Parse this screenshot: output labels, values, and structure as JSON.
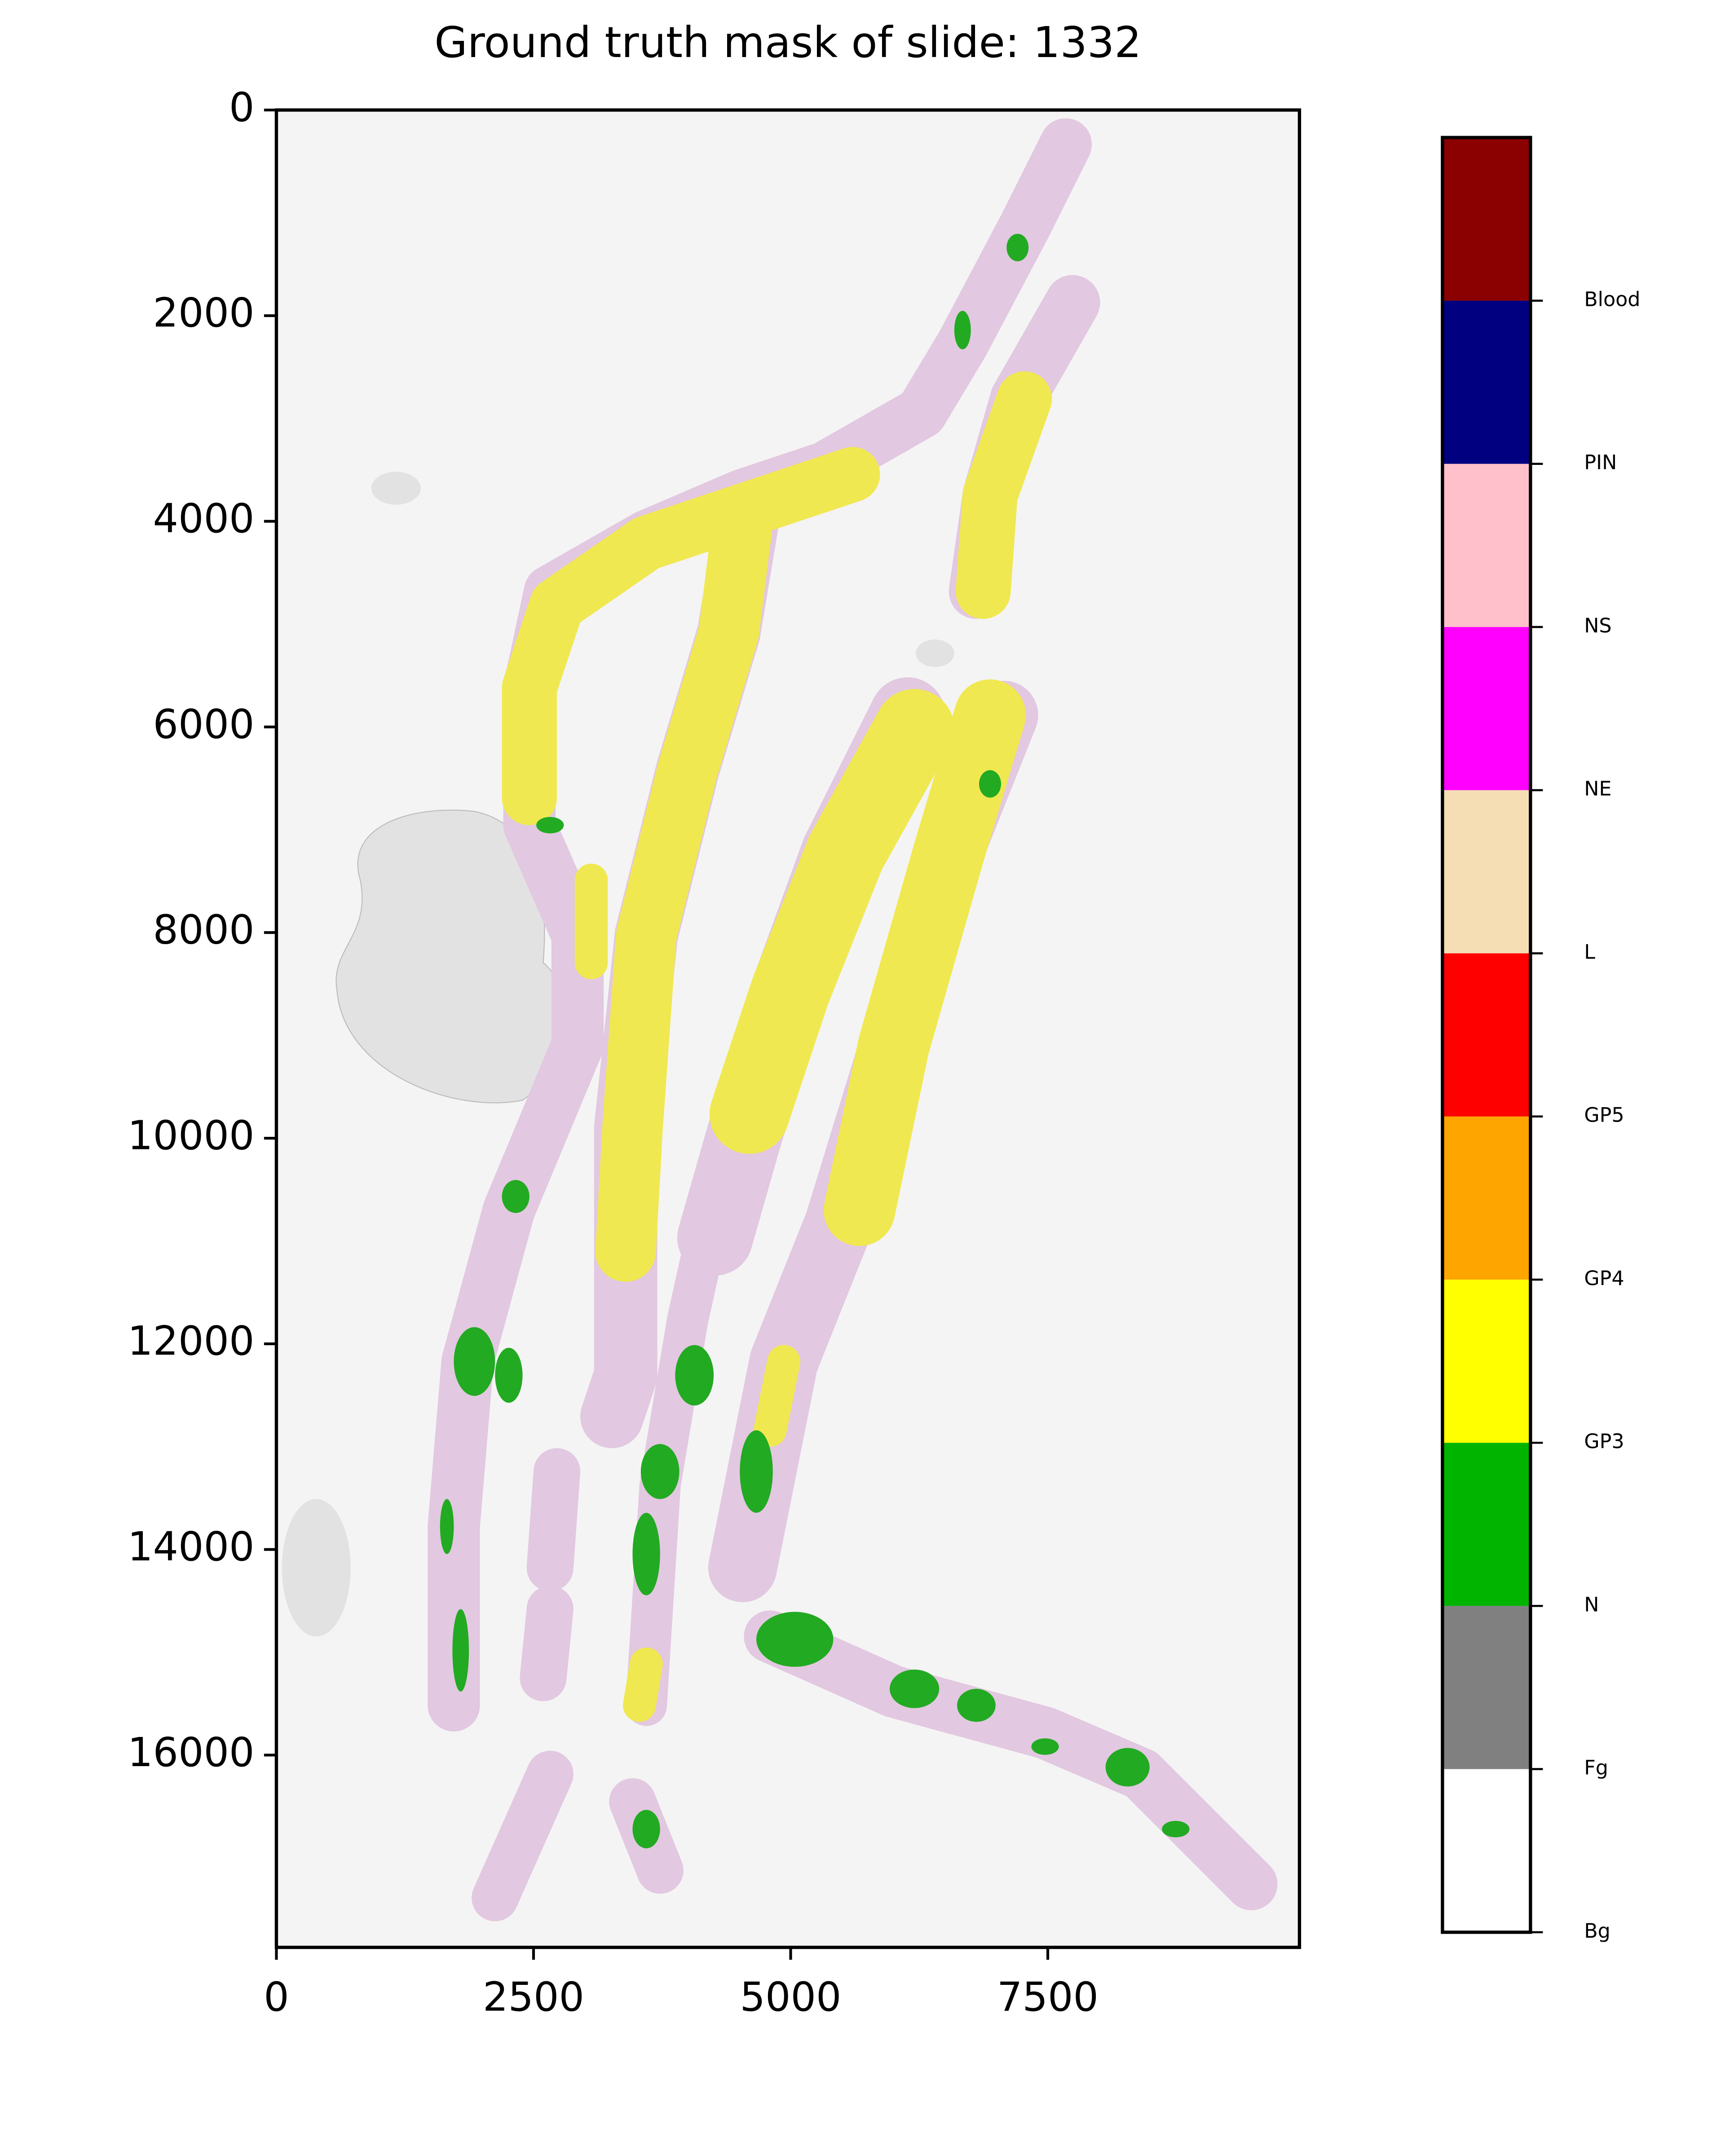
{
  "chart_data": {
    "type": "image",
    "title": "Ground truth mask of slide: 1332",
    "xlim": [
      0,
      9947
    ],
    "ylim": [
      17870,
      0
    ],
    "xticks": [
      0,
      2500,
      5000,
      7500
    ],
    "yticks": [
      0,
      2000,
      4000,
      6000,
      8000,
      10000,
      12000,
      14000,
      16000
    ],
    "colorbar": {
      "lim": [
        0,
        11
      ],
      "colors": [
        "#ffffff",
        "#808080",
        "#00b400",
        "#ffff00",
        "#ffa500",
        "#ff0000",
        "#f5deb3",
        "#ff00ff",
        "#ffc0cb",
        "#000080",
        "#8b0000"
      ],
      "ticks": [
        {
          "value": 0,
          "label": "Bg"
        },
        {
          "value": 1,
          "label": "Fg"
        },
        {
          "value": 2,
          "label": "N"
        },
        {
          "value": 3,
          "label": "GP3"
        },
        {
          "value": 4,
          "label": "GP4"
        },
        {
          "value": 5,
          "label": "GP5"
        },
        {
          "value": 6,
          "label": "L"
        },
        {
          "value": 7,
          "label": "NE"
        },
        {
          "value": 8,
          "label": "NS"
        },
        {
          "value": 9,
          "label": "PIN"
        },
        {
          "value": 10,
          "label": "Blood"
        }
      ]
    }
  }
}
